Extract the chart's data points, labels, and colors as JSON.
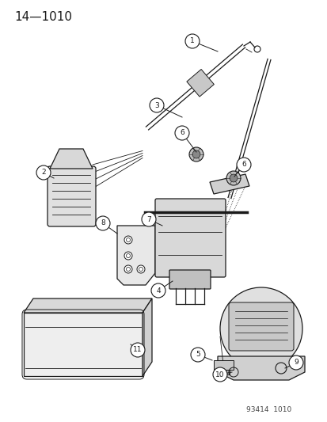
{
  "title": "14—1010",
  "footer": "93414  1010",
  "bg_color": "#ffffff",
  "line_color": "#1a1a1a",
  "gray_light": "#d0d0d0",
  "gray_mid": "#a0a0a0",
  "gray_dark": "#707070",
  "title_fontsize": 11,
  "footer_fontsize": 6.5,
  "label_fontsize": 6.5,
  "fig_width": 4.14,
  "fig_height": 5.33,
  "dpi": 100
}
